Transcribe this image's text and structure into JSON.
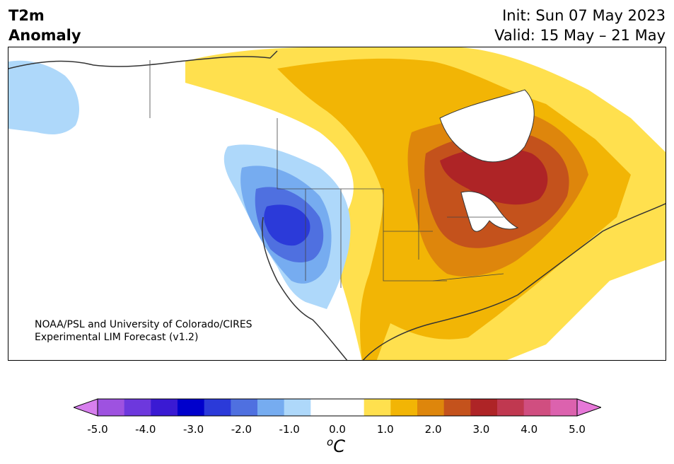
{
  "title": {
    "variable": "T2m",
    "type": "Anomaly",
    "init": "Init: Sun 07 May 2023",
    "valid": "Valid: 15 May – 21 May"
  },
  "credit": {
    "line1": "NOAA/PSL and University of Colorado/CIRES",
    "line2": "Experimental LIM Forecast (v1.2)"
  },
  "colorbar": {
    "colors": [
      "#d77fee",
      "#9e52e0",
      "#6d38dd",
      "#3a1ad3",
      "#0000cc",
      "#2b3ad9",
      "#4f70e0",
      "#76acf0",
      "#aed8fa",
      "#ffffff",
      "#ffffff",
      "#ffe04e",
      "#f2b505",
      "#de860c",
      "#c4521c",
      "#ae2426",
      "#c03850",
      "#d04e80",
      "#dc62ae",
      "#e678d8"
    ],
    "tick_labels": [
      "-5.0",
      "-4.0",
      "-3.0",
      "-2.0",
      "-1.0",
      "0.0",
      "1.0",
      "2.0",
      "3.0",
      "4.0",
      "5.0"
    ],
    "unit": "C",
    "unit_prefix": "o"
  },
  "map": {
    "region": "North America",
    "fill_colors": {
      "ocean": "#ffffff",
      "cool1": "#aed8fa",
      "cool2": "#76acf0",
      "cool3": "#4f70e0",
      "cool4": "#2b3ad9",
      "warm1": "#ffe04e",
      "warm2": "#f2b505",
      "warm3": "#de860c",
      "warm4": "#c4521c",
      "warm5": "#ae2426"
    }
  }
}
